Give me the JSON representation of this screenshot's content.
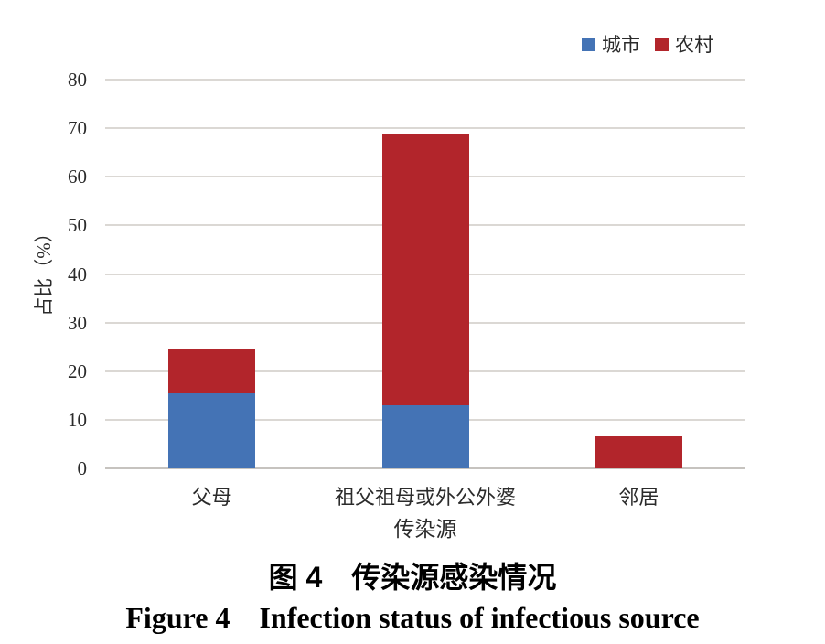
{
  "figure": {
    "caption_zh": "图 4　传染源感染情况",
    "caption_en": "Figure 4　Infection status of infectious source"
  },
  "chart_data": {
    "type": "bar",
    "stacked": true,
    "categories": [
      "父母",
      "祖父祖母或外公外婆",
      "邻居"
    ],
    "series": [
      {
        "name": "城市",
        "color": "#4473b5",
        "values": [
          15.5,
          13.0,
          0
        ]
      },
      {
        "name": "农村",
        "color": "#b2252b",
        "values": [
          9.0,
          55.9,
          6.5
        ]
      }
    ],
    "totals": [
      24.5,
      68.9,
      6.5
    ],
    "xlabel": "传染源",
    "ylabel": "占比（%）",
    "ylim": [
      0,
      80
    ],
    "y_ticks": [
      0,
      10,
      20,
      30,
      40,
      50,
      60,
      70,
      80
    ],
    "grid": "horizontal",
    "legend_position": "top-right",
    "colors": {
      "grid": "#dbd8d4",
      "axis": "#c6c3bf",
      "text": "#2b2b2b"
    }
  }
}
